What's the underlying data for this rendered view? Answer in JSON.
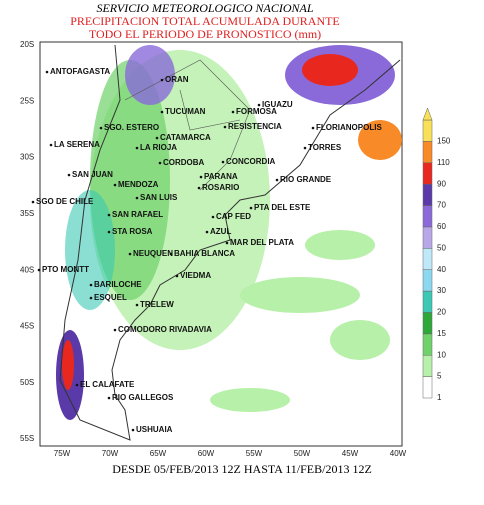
{
  "header": {
    "agency": "SERVICIO METEOROLOGICO NACIONAL",
    "title_line1": "PRECIPITACION TOTAL ACUMULADA DURANTE",
    "title_line2": "TODO EL PERIODO DE PRONOSTICO (mm)"
  },
  "axes": {
    "latitudes": [
      "20S",
      "25S",
      "30S",
      "35S",
      "40S",
      "45S",
      "50S",
      "55S"
    ],
    "longitudes": [
      "75W",
      "70W",
      "65W",
      "60W",
      "55W",
      "50W",
      "45W",
      "40W"
    ]
  },
  "cities": [
    "ANTOFAGASTA",
    "ORAN",
    "TUCUMAN",
    "FORMOSA",
    "IGUAZU",
    "SGO. ESTERO",
    "CATAMARCA",
    "RESISTENCIA",
    "FLORIANOPOLIS",
    "LA RIOJA",
    "TORRES",
    "LA SERENA",
    "CORDOBA",
    "CONCORDIA",
    "SAN JUAN",
    "PARANA",
    "RIO GRANDE",
    "MENDOZA",
    "ROSARIO",
    "SGO DE CHILE",
    "SAN LUIS",
    "PTA DEL ESTE",
    "SAN RAFAEL",
    "CAP FED",
    "STA ROSA",
    "AZUL",
    "MAR DEL PLATA",
    "NEUQUEN",
    "BAHIA BLANCA",
    "PTO MONTT",
    "VIEDMA",
    "BARILOCHE",
    "ESQUEL",
    "TRELEW",
    "COMODORO RIVADAVIA",
    "EL CALAFATE",
    "RIO GALLEGOS",
    "USHUAIA"
  ],
  "legend": {
    "labels": [
      "1",
      "5",
      "10",
      "15",
      "20",
      "30",
      "40",
      "50",
      "60",
      "70",
      "90",
      "110",
      "150"
    ],
    "colors": [
      "#ffffff",
      "#b7f0a8",
      "#6fd26a",
      "#2fa83a",
      "#3cc8b4",
      "#8cd8f0",
      "#bfe8f8",
      "#b9a8e8",
      "#8a6ad8",
      "#5a3aa8",
      "#e8281e",
      "#f88a28",
      "#f8e058"
    ]
  },
  "footer": {
    "range": "DESDE 05/FEB/2013 12Z HASTA 11/FEB/2013 12Z"
  }
}
